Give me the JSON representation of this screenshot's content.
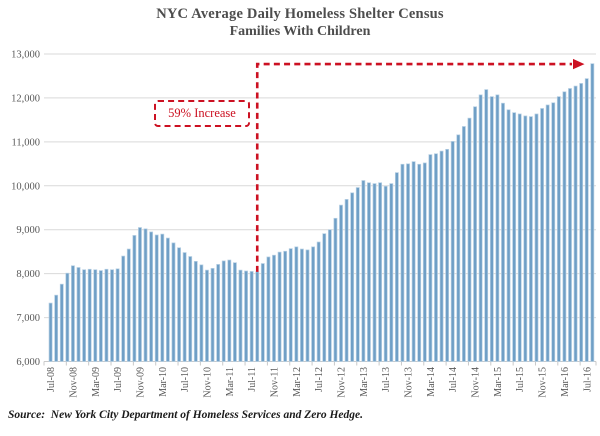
{
  "chart_data": {
    "type": "bar",
    "title": "NYC Average Daily Homeless Shelter Census",
    "subtitle": "Families With Children",
    "xlabel": "",
    "ylabel": "",
    "ylim": [
      6000,
      13000
    ],
    "ytick_step": 1000,
    "xtick_every": 4,
    "grid": "horizontal",
    "legend": "none",
    "categories": [
      "Jul-08",
      "Aug-08",
      "Sep-08",
      "Oct-08",
      "Nov-08",
      "Dec-08",
      "Jan-09",
      "Feb-09",
      "Mar-09",
      "Apr-09",
      "May-09",
      "Jun-09",
      "Jul-09",
      "Aug-09",
      "Sep-09",
      "Oct-09",
      "Nov-09",
      "Dec-09",
      "Jan-10",
      "Feb-10",
      "Mar-10",
      "Apr-10",
      "May-10",
      "Jun-10",
      "Jul-10",
      "Aug-10",
      "Sep-10",
      "Oct-10",
      "Nov-10",
      "Dec-10",
      "Jan-11",
      "Feb-11",
      "Mar-11",
      "Apr-11",
      "May-11",
      "Jun-11",
      "Jul-11",
      "Aug-11",
      "Sep-11",
      "Oct-11",
      "Nov-11",
      "Dec-11",
      "Jan-12",
      "Feb-12",
      "Mar-12",
      "Apr-12",
      "May-12",
      "Jun-12",
      "Jul-12",
      "Aug-12",
      "Sep-12",
      "Oct-12",
      "Nov-12",
      "Dec-12",
      "Jan-13",
      "Feb-13",
      "Mar-13",
      "Apr-13",
      "May-13",
      "Jun-13",
      "Jul-13",
      "Aug-13",
      "Sep-13",
      "Oct-13",
      "Nov-13",
      "Dec-13",
      "Jan-14",
      "Feb-14",
      "Mar-14",
      "Apr-14",
      "May-14",
      "Jun-14",
      "Jul-14",
      "Aug-14",
      "Sep-14",
      "Oct-14",
      "Nov-14",
      "Dec-14",
      "Jan-15",
      "Feb-15",
      "Mar-15",
      "Apr-15",
      "May-15",
      "Jun-15",
      "Jul-15",
      "Aug-15",
      "Sep-15",
      "Oct-15",
      "Nov-15",
      "Dec-15",
      "Jan-16",
      "Feb-16",
      "Mar-16",
      "Apr-16",
      "May-16",
      "Jun-16",
      "Jul-16",
      "Aug-16"
    ],
    "values": [
      7330,
      7510,
      7760,
      8010,
      8180,
      8140,
      8090,
      8100,
      8090,
      8070,
      8100,
      8090,
      8110,
      8400,
      8560,
      8870,
      9050,
      9020,
      8950,
      8880,
      8900,
      8810,
      8700,
      8590,
      8480,
      8390,
      8280,
      8200,
      8080,
      8120,
      8210,
      8290,
      8310,
      8250,
      8080,
      8060,
      8050,
      8040,
      8230,
      8380,
      8420,
      8490,
      8510,
      8570,
      8610,
      8560,
      8540,
      8610,
      8720,
      8910,
      9000,
      9260,
      9560,
      9690,
      9840,
      9960,
      10120,
      10070,
      10050,
      10070,
      9990,
      10050,
      10300,
      10490,
      10500,
      10550,
      10490,
      10520,
      10710,
      10730,
      10790,
      10830,
      11010,
      11160,
      11350,
      11540,
      11800,
      12070,
      12190,
      12030,
      12070,
      11880,
      11730,
      11665,
      11635,
      11590,
      11575,
      11635,
      11760,
      11840,
      11890,
      12030,
      12140,
      12215,
      12270,
      12330,
      12440,
      12780
    ],
    "annotation": {
      "label": "59% Increase",
      "arrow_from_category": "Aug-11",
      "arrow_from_value": 8040,
      "arrow_level": 12770,
      "arrow_to_category": "Jul-16"
    },
    "source": "Source:  New York City Department of Homeless Services and Zero Hedge.",
    "colors": {
      "bar_fill": "#6f9fc6",
      "bar_edge": "#b7d0e4",
      "annotation_red": "#cc1122",
      "grid": "#d9d9d9",
      "axis_line": "#c9c9c9",
      "axis_text": "#595959",
      "title_text": "#4d4d4d",
      "source_text": "#1a1a1a"
    }
  }
}
